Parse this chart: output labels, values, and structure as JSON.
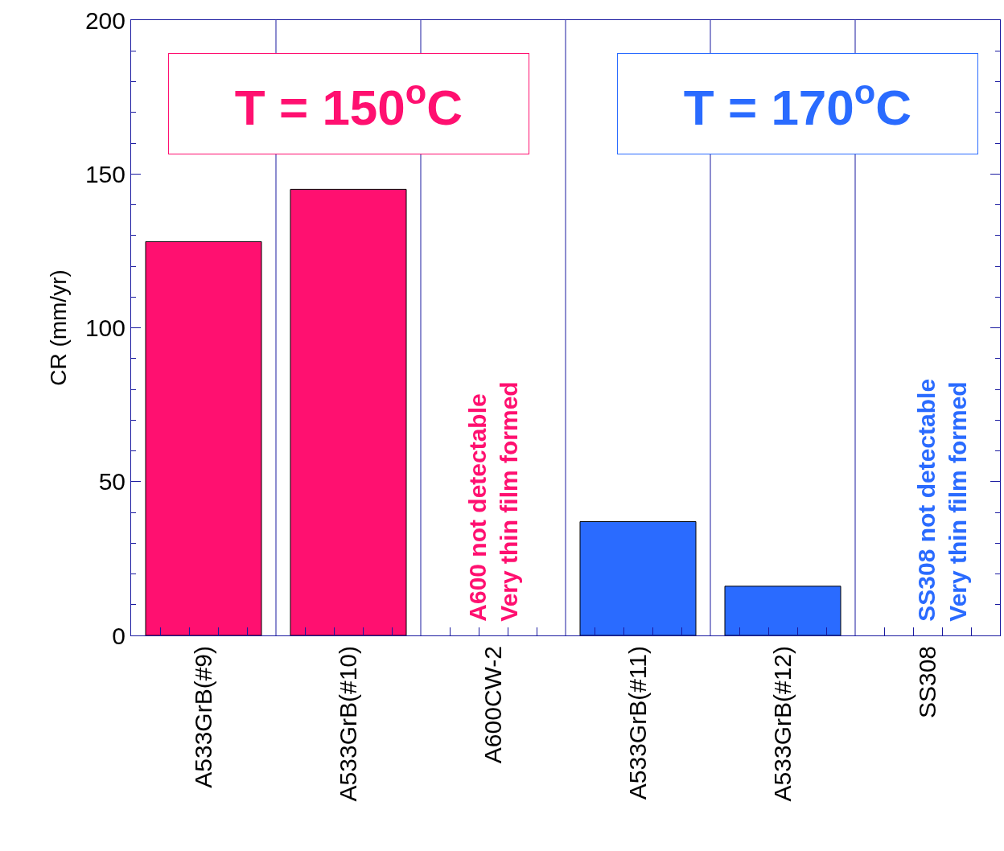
{
  "chart_data": {
    "type": "bar",
    "ylabel": "CR (mm/yr)",
    "categories": [
      "A533GrB(#9)",
      "A533GrB(#10)",
      "A600CW-2",
      "A533GrB(#11)",
      "A533GrB(#12)",
      "SS308"
    ],
    "series": [
      {
        "color": "#ff1070",
        "values": [
          128,
          145,
          null,
          null,
          null,
          null
        ]
      },
      {
        "color": "#2a6bff",
        "values": [
          null,
          null,
          null,
          37,
          16,
          null
        ]
      }
    ],
    "ylim": [
      0,
      200
    ],
    "yticks": [
      0,
      {
        "value": 10,
        "label": null
      },
      {
        "value": 20,
        "label": null
      },
      {
        "value": 30,
        "label": null
      },
      {
        "value": 40,
        "label": null
      },
      50,
      {
        "value": 60,
        "label": null
      },
      {
        "value": 70,
        "label": null
      },
      {
        "value": 80,
        "label": null
      },
      {
        "value": 90,
        "label": null
      },
      100,
      {
        "value": 110,
        "label": null
      },
      {
        "value": 120,
        "label": null
      },
      {
        "value": 130,
        "label": null
      },
      {
        "value": 140,
        "label": null
      },
      150,
      {
        "value": 160,
        "label": null
      },
      {
        "value": 170,
        "label": null
      },
      {
        "value": 180,
        "label": null
      },
      {
        "value": 190,
        "label": null
      },
      200
    ],
    "grid": "x",
    "annotations": [
      "T = 150$^{o}$C",
      "A600 not detectable\nVery thin film formed",
      "T = 170$^{o}$C",
      "SS308 not detectable\nVery thin film formed"
    ]
  }
}
